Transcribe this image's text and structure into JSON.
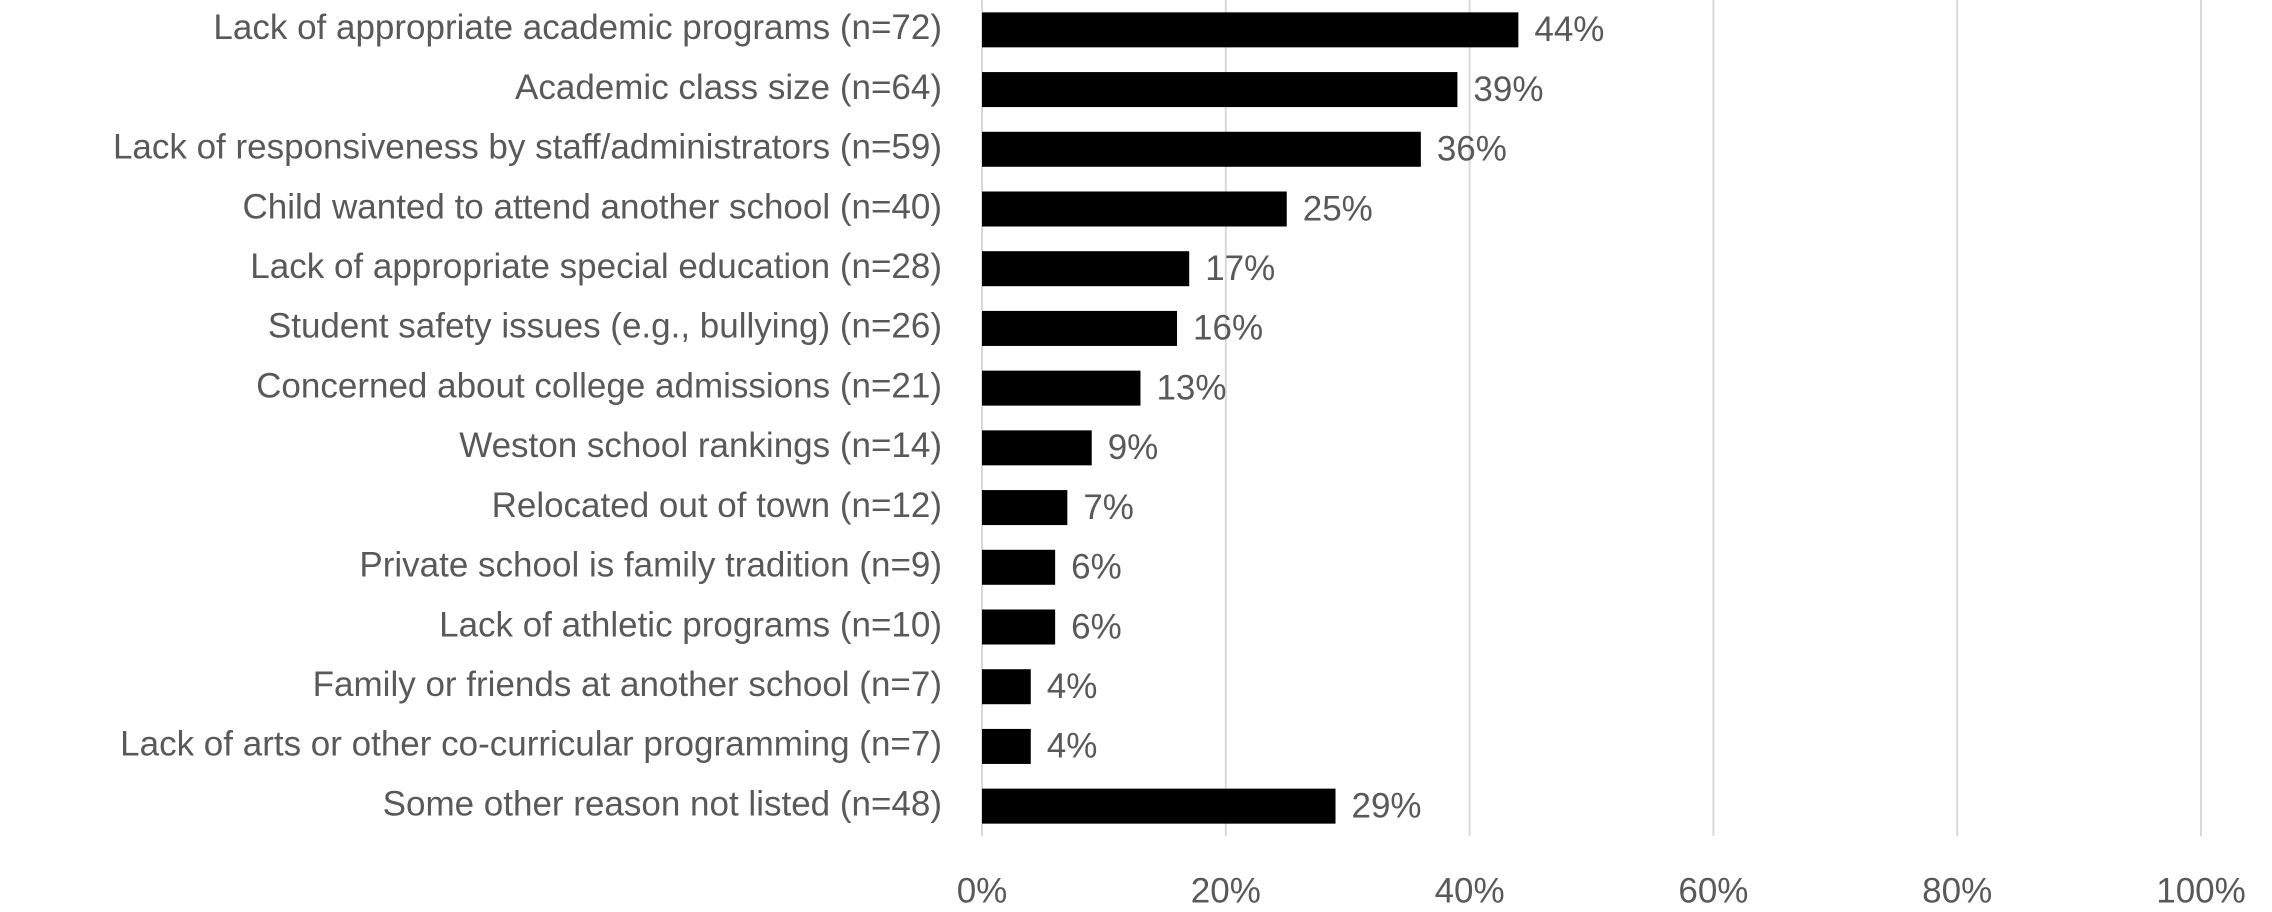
{
  "chart_data": {
    "type": "bar",
    "orientation": "horizontal",
    "categories": [
      "Lack of appropriate academic programs (n=72)",
      "Academic class size (n=64)",
      "Lack of responsiveness by staff/administrators (n=59)",
      "Child wanted to attend another school (n=40)",
      "Lack of appropriate special education (n=28)",
      "Student safety issues (e.g., bullying) (n=26)",
      "Concerned about college admissions (n=21)",
      "Weston school rankings (n=14)",
      "Relocated out of town (n=12)",
      "Private school is family tradition (n=9)",
      "Lack of athletic programs (n=10)",
      "Family or friends at another school (n=7)",
      "Lack of arts or other co-curricular programming (n=7)",
      "Some other reason not listed (n=48)"
    ],
    "values": [
      44,
      39,
      36,
      25,
      17,
      16,
      13,
      9,
      7,
      6,
      6,
      4,
      4,
      29
    ],
    "value_labels": [
      "44%",
      "39%",
      "36%",
      "25%",
      "17%",
      "16%",
      "13%",
      "9%",
      "7%",
      "6%",
      "6%",
      "4%",
      "4%",
      "29%"
    ],
    "color": "#000000",
    "xlim": [
      0,
      100
    ],
    "xticks": [
      {
        "value": 0,
        "label": "0%"
      },
      {
        "value": 20,
        "label": "20%"
      },
      {
        "value": 40,
        "label": "40%"
      },
      {
        "value": 60,
        "label": "60%"
      },
      {
        "value": 80,
        "label": "80%"
      },
      {
        "value": 100,
        "label": "100%"
      }
    ],
    "grid": true
  }
}
